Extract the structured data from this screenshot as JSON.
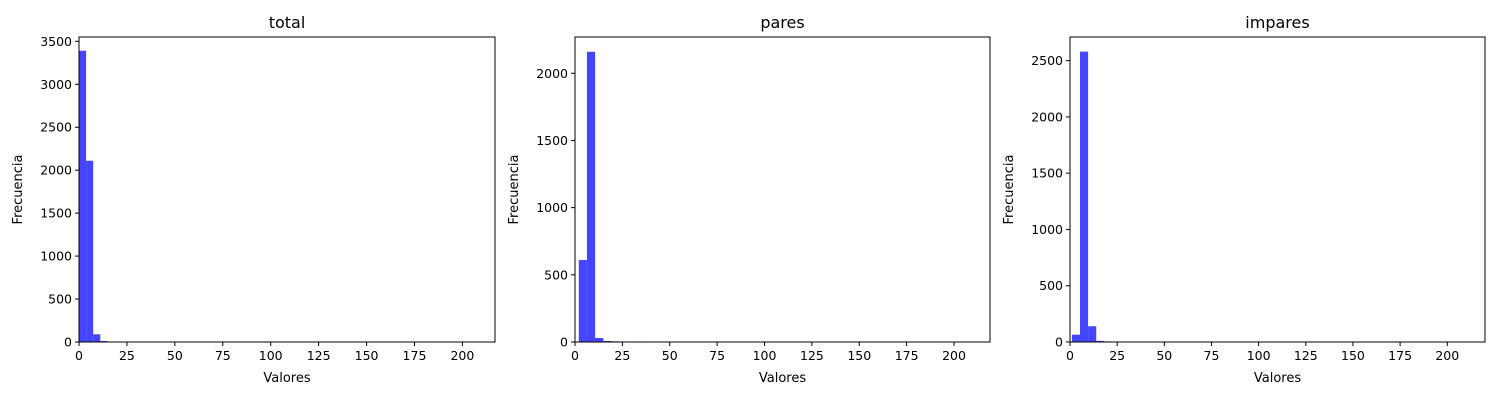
{
  "chart_data": [
    {
      "type": "bar",
      "title": "total",
      "xlabel": "Valores",
      "ylabel": "Frecuencia",
      "xlim": [
        0,
        217
      ],
      "ylim": [
        0,
        3550
      ],
      "xticks": [
        0,
        25,
        50,
        75,
        100,
        125,
        150,
        175,
        200
      ],
      "yticks": [
        0,
        500,
        1000,
        1500,
        2000,
        2500,
        3000,
        3500
      ],
      "bar_color": "#4545ff",
      "bins": [
        {
          "start": 0,
          "end": 3.7,
          "count": 3390
        },
        {
          "start": 3.7,
          "end": 7.4,
          "count": 2110
        },
        {
          "start": 7.4,
          "end": 11.1,
          "count": 90
        },
        {
          "start": 11.1,
          "end": 14.8,
          "count": 12
        },
        {
          "start": 14.8,
          "end": 18.5,
          "count": 3
        },
        {
          "start": 18.5,
          "end": 22.2,
          "count": 2
        }
      ]
    },
    {
      "type": "bar",
      "title": "pares",
      "xlabel": "Valores",
      "ylabel": "Frecuencia",
      "xlim": [
        0,
        219
      ],
      "ylim": [
        0,
        2270
      ],
      "xticks": [
        0,
        25,
        50,
        75,
        100,
        125,
        150,
        175,
        200
      ],
      "yticks": [
        0,
        500,
        1000,
        1500,
        2000
      ],
      "bar_color": "#4545ff",
      "bins": [
        {
          "start": 2,
          "end": 6.3,
          "count": 610
        },
        {
          "start": 6.3,
          "end": 10.6,
          "count": 2160
        },
        {
          "start": 10.6,
          "end": 14.9,
          "count": 30
        },
        {
          "start": 14.9,
          "end": 19.2,
          "count": 8
        },
        {
          "start": 19.2,
          "end": 23.5,
          "count": 5
        },
        {
          "start": 23.5,
          "end": 27.8,
          "count": 3
        },
        {
          "start": 32.1,
          "end": 36.4,
          "count": 4
        },
        {
          "start": 190.8,
          "end": 195.1,
          "count": 3
        },
        {
          "start": 212.3,
          "end": 216.6,
          "count": 2
        }
      ]
    },
    {
      "type": "bar",
      "title": "impares",
      "xlabel": "Valores",
      "ylabel": "Frecuencia",
      "xlim": [
        0,
        220
      ],
      "ylim": [
        0,
        2710
      ],
      "xticks": [
        0,
        25,
        50,
        75,
        100,
        125,
        150,
        175,
        200
      ],
      "yticks": [
        0,
        500,
        1000,
        1500,
        2000,
        2500
      ],
      "bar_color": "#4545ff",
      "bins": [
        {
          "start": 1,
          "end": 5.3,
          "count": 65
        },
        {
          "start": 5.3,
          "end": 9.6,
          "count": 2580
        },
        {
          "start": 9.6,
          "end": 13.9,
          "count": 140
        },
        {
          "start": 13.9,
          "end": 18.2,
          "count": 10
        },
        {
          "start": 18.2,
          "end": 22.5,
          "count": 5
        },
        {
          "start": 35.4,
          "end": 39.7,
          "count": 4
        },
        {
          "start": 191.3,
          "end": 195.6,
          "count": 3
        },
        {
          "start": 215.0,
          "end": 219.3,
          "count": 2
        }
      ]
    }
  ]
}
